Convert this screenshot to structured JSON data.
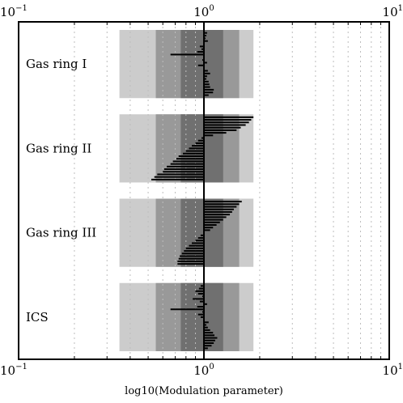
{
  "chart_data": {
    "type": "bar",
    "title": "",
    "xlabel": "log10(Modulation parameter)",
    "x_scale": "log",
    "xlim": [
      0.1,
      10
    ],
    "major_ticks": [
      {
        "value": 0.1,
        "base": "10",
        "exp": "−1"
      },
      {
        "value": 1,
        "base": "10",
        "exp": "0"
      },
      {
        "value": 10,
        "base": "10",
        "exp": "1"
      }
    ],
    "grid": "minor x dotted",
    "reference_line": 1.0,
    "shade_bands": [
      {
        "from": 0.35,
        "to": 1.85,
        "color": "#cccccc"
      },
      {
        "from": 0.55,
        "to": 1.55,
        "color": "#999999"
      },
      {
        "from": 0.75,
        "to": 1.27,
        "color": "#707070"
      }
    ],
    "groups": [
      {
        "label": "Gas ring I",
        "values": [
          1.04,
          1.03,
          1.02,
          1.05,
          1.0,
          0.95,
          0.97,
          0.92,
          0.66,
          1.0,
          0.98,
          1.04,
          0.93,
          1.0,
          1.05,
          1.08,
          1.04,
          1.03,
          1.06,
          1.07,
          1.08,
          1.13,
          1.12,
          1.06
        ]
      },
      {
        "label": "Gas ring II",
        "values": [
          1.85,
          1.8,
          1.75,
          1.68,
          1.58,
          1.5,
          1.32,
          1.12,
          0.97,
          0.93,
          0.9,
          0.86,
          0.83,
          0.8,
          0.77,
          0.73,
          0.71,
          0.68,
          0.66,
          0.63,
          0.61,
          0.6,
          0.56,
          0.54,
          0.52
        ]
      },
      {
        "label": "Gas ring III",
        "values": [
          1.6,
          1.55,
          1.5,
          1.45,
          1.42,
          1.38,
          1.32,
          1.27,
          1.22,
          1.17,
          1.12,
          1.08,
          1.0,
          0.96,
          0.93,
          0.9,
          0.86,
          0.83,
          0.8,
          0.78,
          0.76,
          0.74,
          0.73,
          0.72,
          0.72
        ]
      },
      {
        "label": "ICS",
        "values": [
          0.96,
          0.94,
          0.9,
          0.93,
          0.98,
          0.87,
          0.95,
          1.04,
          0.92,
          0.66,
          0.98,
          0.93,
          0.96,
          1.0,
          1.06,
          1.03,
          1.05,
          1.08,
          1.12,
          1.14,
          1.18,
          1.15,
          1.13,
          1.1,
          1.05
        ]
      }
    ]
  },
  "colors": {
    "bar": "#000000",
    "frame": "#000000",
    "grid": "#bdbdbd",
    "background": "#ffffff"
  }
}
